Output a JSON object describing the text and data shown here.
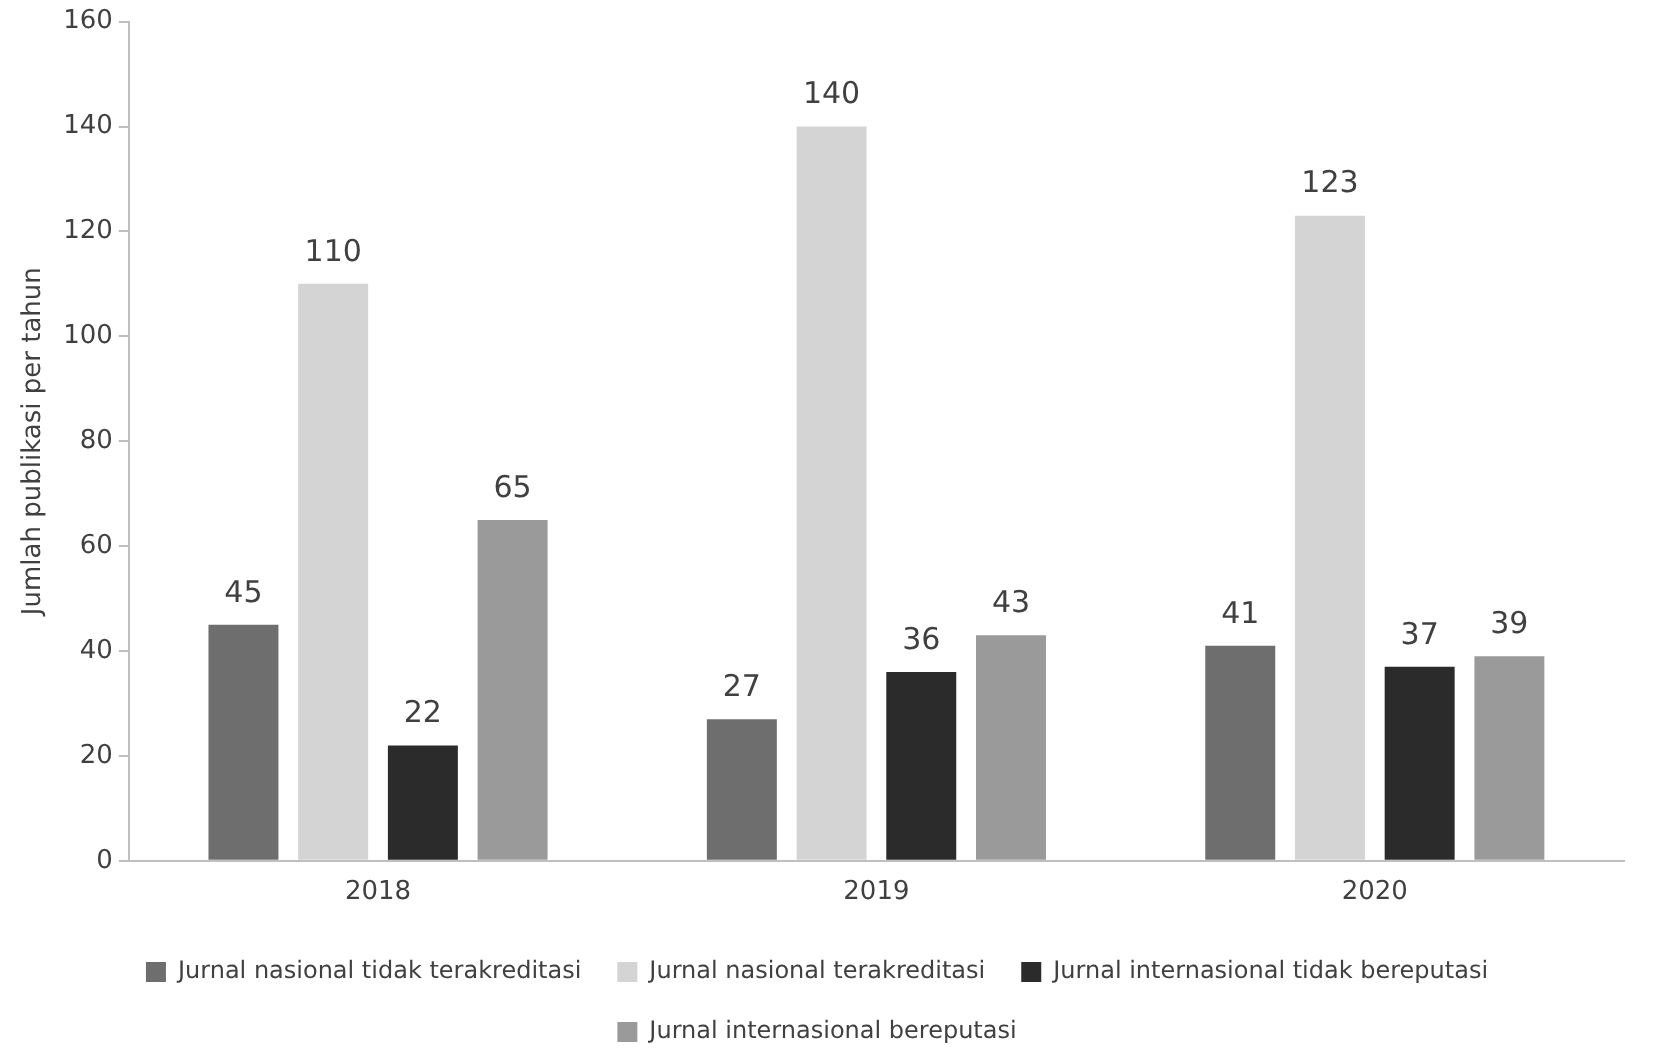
{
  "chart_data": {
    "type": "bar",
    "ylabel": "Jumlah publikasi per tahun",
    "categories": [
      "2018",
      "2019",
      "2020"
    ],
    "series": [
      {
        "name": "Jurnal nasional tidak terakreditasi",
        "color": "#6e6e6e",
        "values": [
          45,
          27,
          41
        ]
      },
      {
        "name": "Jurnal nasional terakreditasi",
        "color": "#d4d4d4",
        "values": [
          110,
          140,
          123
        ]
      },
      {
        "name": "Jurnal internasional tidak bereputasi",
        "color": "#2b2b2b",
        "values": [
          22,
          36,
          37
        ]
      },
      {
        "name": "Jurnal internasional bereputasi",
        "color": "#9a9a9a",
        "values": [
          65,
          43,
          39
        ]
      }
    ],
    "ylim": [
      0,
      160
    ],
    "yticks": [
      0,
      20,
      40,
      60,
      80,
      100,
      120,
      140,
      160
    ],
    "grid": false,
    "legend": "bottom",
    "data_labels": true
  }
}
